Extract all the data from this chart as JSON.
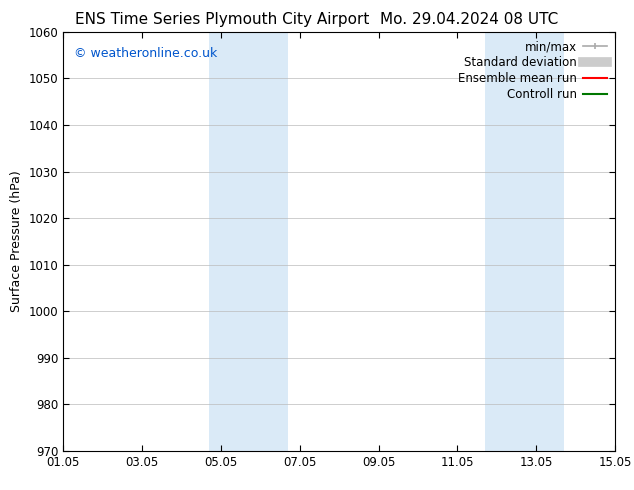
{
  "title_left": "ENS Time Series Plymouth City Airport",
  "title_right": "Mo. 29.04.2024 08 UTC",
  "ylabel": "Surface Pressure (hPa)",
  "xlim": [
    0,
    14
  ],
  "ylim": [
    970,
    1060
  ],
  "yticks": [
    970,
    980,
    990,
    1000,
    1010,
    1020,
    1030,
    1040,
    1050,
    1060
  ],
  "xtick_labels": [
    "01.05",
    "03.05",
    "05.05",
    "07.05",
    "09.05",
    "11.05",
    "13.05",
    "15.05"
  ],
  "xtick_positions": [
    0,
    2,
    4,
    6,
    8,
    10,
    12,
    14
  ],
  "shaded_bands": [
    {
      "xmin": 3.7,
      "xmax": 5.7,
      "color": "#daeaf7"
    },
    {
      "xmin": 10.7,
      "xmax": 12.7,
      "color": "#daeaf7"
    }
  ],
  "copyright_text": "© weatheronline.co.uk",
  "copyright_color": "#0055cc",
  "legend_items": [
    {
      "label": "min/max",
      "color": "#aaaaaa",
      "lw": 1.2,
      "style": "caps"
    },
    {
      "label": "Standard deviation",
      "color": "#cccccc",
      "lw": 7,
      "style": "solid"
    },
    {
      "label": "Ensemble mean run",
      "color": "#ff0000",
      "lw": 1.5,
      "style": "solid"
    },
    {
      "label": "Controll run",
      "color": "#007700",
      "lw": 1.5,
      "style": "solid"
    }
  ],
  "bg_color": "#ffffff",
  "grid_color": "#bbbbbb",
  "title_fontsize": 11,
  "tick_fontsize": 8.5,
  "ylabel_fontsize": 9,
  "legend_fontsize": 8.5,
  "copyright_fontsize": 9
}
